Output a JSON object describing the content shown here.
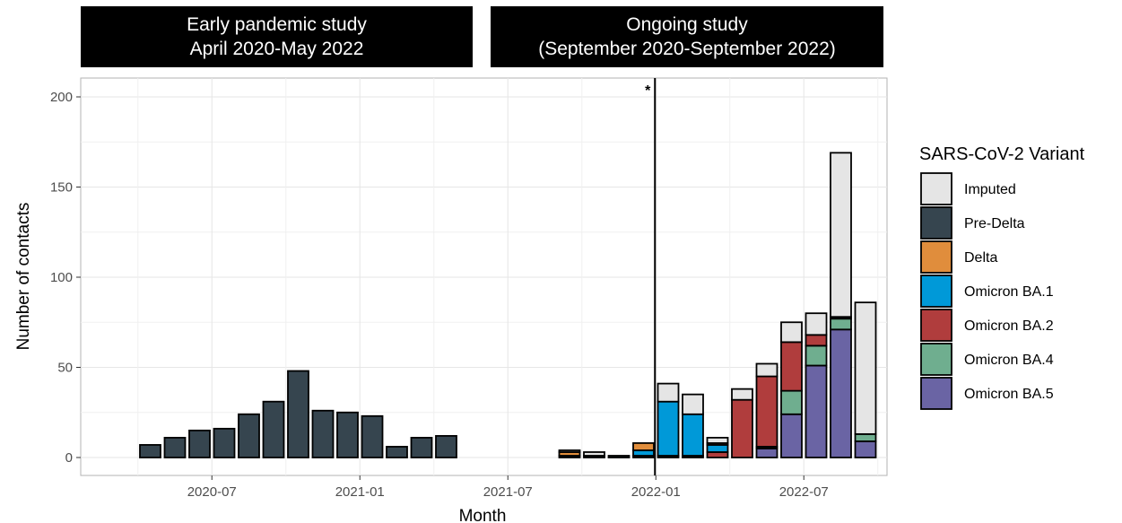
{
  "panels": [
    {
      "title_line1": "Early pandemic study",
      "title_line2": "April 2020-May 2022"
    },
    {
      "title_line1": "Ongoing study",
      "title_line2": "(September 2020-September 2022)"
    }
  ],
  "chart_data": {
    "type": "bar",
    "stacked": true,
    "xlabel": "Month",
    "ylabel": "Number of contacts",
    "ylim": [
      0,
      200
    ],
    "yticks": [
      0,
      50,
      100,
      150,
      200
    ],
    "xlim": [
      "2020-02",
      "2022-10"
    ],
    "xticks": [
      "2020-07",
      "2021-01",
      "2021-07",
      "2022-01",
      "2022-07"
    ],
    "grid": true,
    "legend": {
      "title": "SARS-CoV-2 Variant",
      "position": "right",
      "entries": [
        "Imputed",
        "Pre-Delta",
        "Delta",
        "Omicron BA.1",
        "Omicron BA.2",
        "Omicron BA.4",
        "Omicron BA.5"
      ]
    },
    "colors": {
      "Imputed": "#e5e5e5",
      "Pre-Delta": "#36454f",
      "Delta": "#e08d3c",
      "Omicron BA.1": "#0099d8",
      "Omicron BA.2": "#b03d3d",
      "Omicron BA.4": "#6fae8f",
      "Omicron BA.5": "#6a64a4"
    },
    "reference_line": {
      "x": "2022-01-01",
      "marker": "*"
    },
    "bars": [
      {
        "month": "2020-04",
        "Pre-Delta": 7
      },
      {
        "month": "2020-05",
        "Pre-Delta": 11
      },
      {
        "month": "2020-06",
        "Pre-Delta": 15
      },
      {
        "month": "2020-07",
        "Pre-Delta": 16
      },
      {
        "month": "2020-08",
        "Pre-Delta": 24
      },
      {
        "month": "2020-09",
        "Pre-Delta": 31
      },
      {
        "month": "2020-10",
        "Pre-Delta": 48
      },
      {
        "month": "2020-11",
        "Pre-Delta": 26
      },
      {
        "month": "2020-12",
        "Pre-Delta": 25
      },
      {
        "month": "2021-01",
        "Pre-Delta": 23
      },
      {
        "month": "2021-02",
        "Pre-Delta": 6
      },
      {
        "month": "2021-03",
        "Pre-Delta": 11
      },
      {
        "month": "2021-04",
        "Pre-Delta": 12
      },
      {
        "month": "2021-09",
        "Pre-Delta": 1,
        "Delta": 2,
        "Imputed": 1
      },
      {
        "month": "2021-10",
        "Pre-Delta": 1,
        "Imputed": 2
      },
      {
        "month": "2021-11",
        "Pre-Delta": 1
      },
      {
        "month": "2021-12",
        "Pre-Delta": 1,
        "Omicron BA.1": 3,
        "Delta": 4
      },
      {
        "month": "2022-01",
        "Pre-Delta": 1,
        "Omicron BA.1": 30,
        "Imputed": 10
      },
      {
        "month": "2022-02",
        "Pre-Delta": 1,
        "Omicron BA.1": 23,
        "Imputed": 11
      },
      {
        "month": "2022-03",
        "Omicron BA.2": 3,
        "Omicron BA.1": 4,
        "Delta": 1,
        "Imputed": 3
      },
      {
        "month": "2022-04",
        "Omicron BA.2": 32,
        "Imputed": 6
      },
      {
        "month": "2022-05",
        "Omicron BA.5": 5,
        "Pre-Delta": 1,
        "Omicron BA.2": 39,
        "Imputed": 7
      },
      {
        "month": "2022-06",
        "Omicron BA.5": 24,
        "Omicron BA.4": 13,
        "Omicron BA.2": 27,
        "Imputed": 11
      },
      {
        "month": "2022-07",
        "Omicron BA.5": 51,
        "Omicron BA.4": 11,
        "Omicron BA.2": 6,
        "Imputed": 12
      },
      {
        "month": "2022-08",
        "Omicron BA.5": 71,
        "Omicron BA.4": 6,
        "Pre-Delta": 1,
        "Imputed": 91
      },
      {
        "month": "2022-09",
        "Omicron BA.5": 9,
        "Omicron BA.4": 4,
        "Imputed": 73
      }
    ]
  }
}
